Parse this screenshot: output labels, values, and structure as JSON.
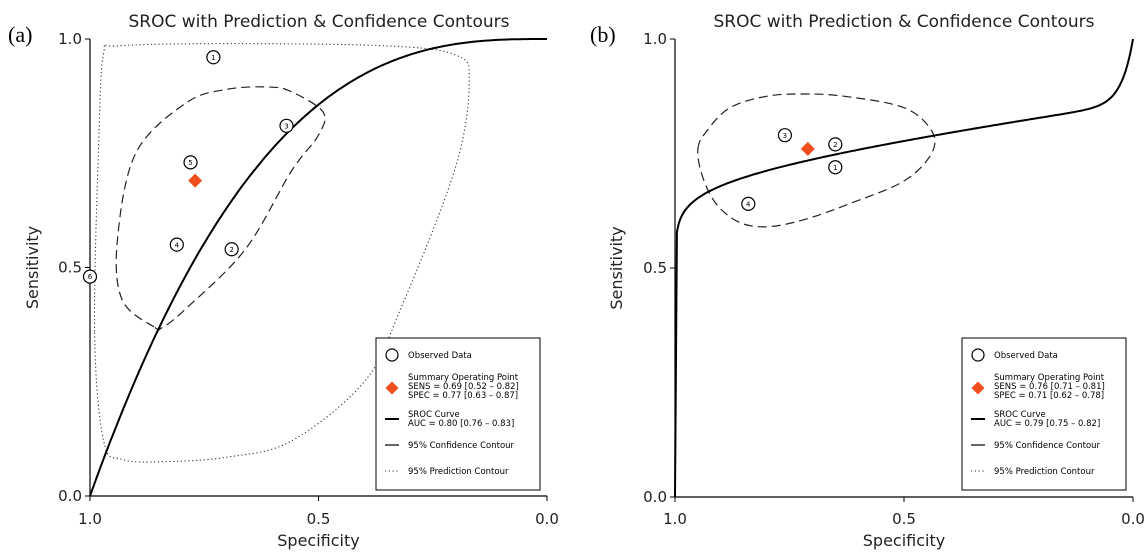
{
  "chart_data": [
    {
      "type": "scatter",
      "panel_label": "(a)",
      "title": "SROC with Prediction & Confidence Contours",
      "xlabel": "Specificity",
      "ylabel": "Sensitivity",
      "x_reversed": true,
      "xlim": [
        1.0,
        0.0
      ],
      "ylim": [
        0.0,
        1.0
      ],
      "x_ticks": [
        "1.0",
        "0.5",
        "0.0"
      ],
      "y_ticks": [
        "0.0",
        "0.5",
        "1.0"
      ],
      "x_tick_values": [
        1.0,
        0.5,
        0.0
      ],
      "y_tick_values": [
        0.0,
        0.5,
        1.0
      ],
      "observed_points": [
        {
          "label": "1",
          "spec": 0.73,
          "sens": 0.96
        },
        {
          "label": "2",
          "spec": 0.69,
          "sens": 0.54
        },
        {
          "label": "3",
          "spec": 0.57,
          "sens": 0.81
        },
        {
          "label": "4",
          "spec": 0.81,
          "sens": 0.55
        },
        {
          "label": "5",
          "spec": 0.78,
          "sens": 0.73
        },
        {
          "label": "6",
          "spec": 1.0,
          "sens": 0.48
        }
      ],
      "summary_point": {
        "spec": 0.77,
        "sens": 0.69
      },
      "sroc_curve": {
        "auc": 0.8
      },
      "confidence_contour": [
        [
          0.86,
          0.37
        ],
        [
          0.93,
          0.43
        ],
        [
          0.94,
          0.56
        ],
        [
          0.9,
          0.75
        ],
        [
          0.79,
          0.86
        ],
        [
          0.7,
          0.89
        ],
        [
          0.61,
          0.895
        ],
        [
          0.56,
          0.885
        ],
        [
          0.49,
          0.84
        ],
        [
          0.5,
          0.79
        ],
        [
          0.56,
          0.71
        ],
        [
          0.66,
          0.54
        ],
        [
          0.79,
          0.41
        ],
        [
          0.84,
          0.37
        ]
      ],
      "prediction_contour": [
        [
          0.99,
          0.36
        ],
        [
          0.98,
          0.8
        ],
        [
          0.97,
          0.97
        ],
        [
          0.94,
          0.985
        ],
        [
          0.7,
          0.99
        ],
        [
          0.35,
          0.985
        ],
        [
          0.2,
          0.965
        ],
        [
          0.17,
          0.91
        ],
        [
          0.2,
          0.72
        ],
        [
          0.32,
          0.41
        ],
        [
          0.4,
          0.25
        ],
        [
          0.56,
          0.12
        ],
        [
          0.7,
          0.085
        ],
        [
          0.84,
          0.075
        ],
        [
          0.93,
          0.08
        ],
        [
          0.97,
          0.12
        ]
      ],
      "legend": {
        "placement": "bottom-right",
        "observed": "Observed Data",
        "summary_title": "Summary Operating Point",
        "summary_sens": "SENS = 0.69 [0.52 – 0.82]",
        "summary_spec": "SPEC = 0.77 [0.63 – 0.87]",
        "sroc_title": "SROC Curve",
        "sroc_auc": "AUC = 0.80 [0.76 – 0.83]",
        "confidence": "95% Confidence Contour",
        "prediction": "95% Prediction Contour"
      }
    },
    {
      "type": "scatter",
      "panel_label": "(b)",
      "title": "SROC with Prediction & Confidence Contours",
      "xlabel": "Specificity",
      "ylabel": "Sensitivity",
      "x_reversed": true,
      "xlim": [
        1.0,
        0.0
      ],
      "ylim": [
        0.0,
        1.0
      ],
      "x_ticks": [
        "1.0",
        "0.5",
        "0.0"
      ],
      "y_ticks": [
        "0.0",
        "0.5",
        "1.0"
      ],
      "x_tick_values": [
        1.0,
        0.5,
        0.0
      ],
      "y_tick_values": [
        0.0,
        0.5,
        1.0
      ],
      "observed_points": [
        {
          "label": "1",
          "spec": 0.65,
          "sens": 0.72
        },
        {
          "label": "2",
          "spec": 0.65,
          "sens": 0.77
        },
        {
          "label": "3",
          "spec": 0.76,
          "sens": 0.79
        },
        {
          "label": "4",
          "spec": 0.84,
          "sens": 0.64
        }
      ],
      "summary_point": {
        "spec": 0.71,
        "sens": 0.76
      },
      "sroc_curve": {
        "auc": 0.79
      },
      "confidence_contour": [
        [
          0.95,
          0.76
        ],
        [
          0.93,
          0.8
        ],
        [
          0.88,
          0.85
        ],
        [
          0.8,
          0.875
        ],
        [
          0.72,
          0.88
        ],
        [
          0.63,
          0.875
        ],
        [
          0.5,
          0.85
        ],
        [
          0.44,
          0.8
        ],
        [
          0.44,
          0.75
        ],
        [
          0.5,
          0.69
        ],
        [
          0.62,
          0.64
        ],
        [
          0.72,
          0.605
        ],
        [
          0.8,
          0.59
        ],
        [
          0.86,
          0.6
        ],
        [
          0.91,
          0.64
        ],
        [
          0.94,
          0.7
        ]
      ],
      "legend": {
        "placement": "bottom-right",
        "observed": "Observed Data",
        "summary_title": "Summary Operating Point",
        "summary_sens": "SENS = 0.76 [0.71 – 0.81]",
        "summary_spec": "SPEC = 0.71 [0.62 – 0.78]",
        "sroc_title": "SROC Curve",
        "sroc_auc": "AUC = 0.79 [0.75 – 0.82]",
        "confidence": "95% Confidence Contour",
        "prediction": "95% Prediction Contour"
      }
    }
  ],
  "colors": {
    "summary_point": "#f04e1c",
    "axis": "#000000",
    "curve": "#000000"
  }
}
